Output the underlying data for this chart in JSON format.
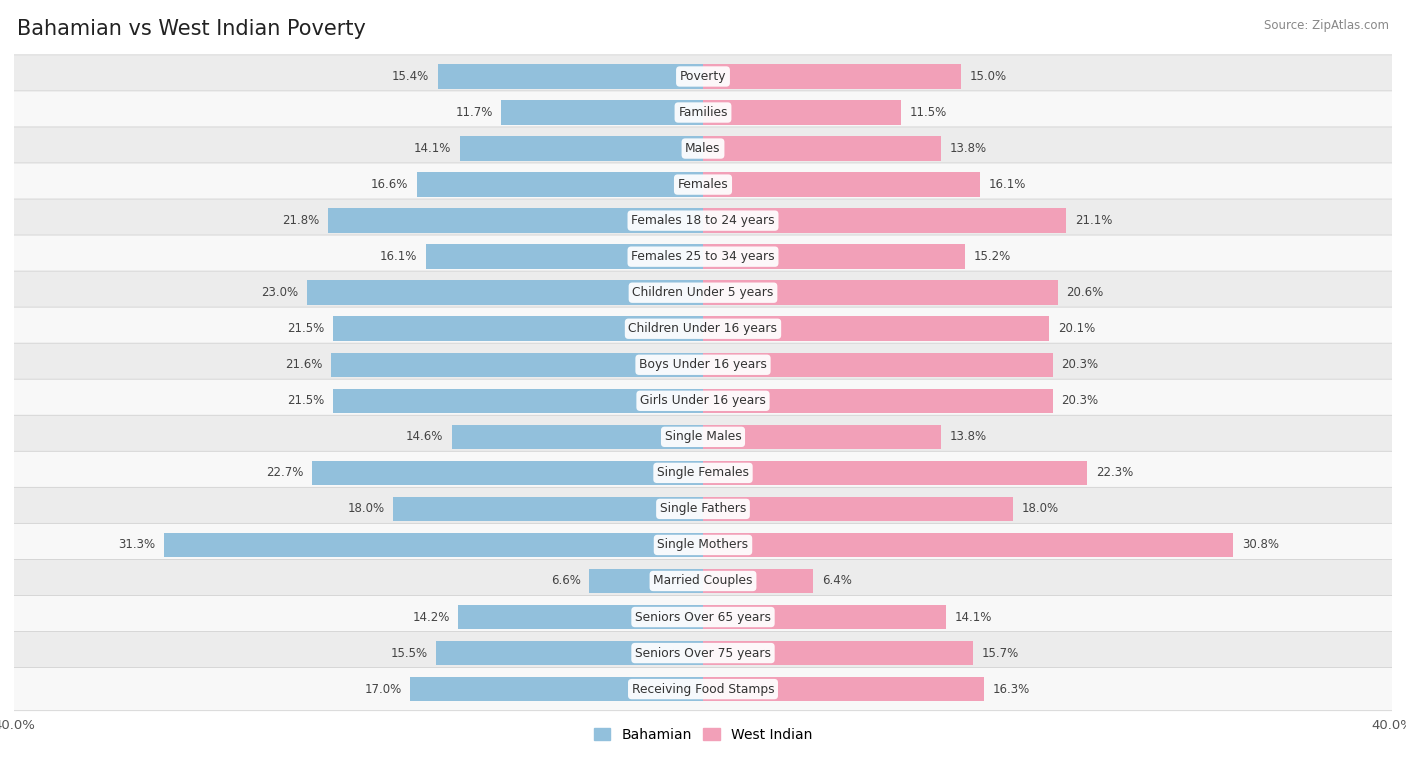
{
  "title": "Bahamian vs West Indian Poverty",
  "source": "Source: ZipAtlas.com",
  "categories": [
    "Poverty",
    "Families",
    "Males",
    "Females",
    "Females 18 to 24 years",
    "Females 25 to 34 years",
    "Children Under 5 years",
    "Children Under 16 years",
    "Boys Under 16 years",
    "Girls Under 16 years",
    "Single Males",
    "Single Females",
    "Single Fathers",
    "Single Mothers",
    "Married Couples",
    "Seniors Over 65 years",
    "Seniors Over 75 years",
    "Receiving Food Stamps"
  ],
  "bahamian": [
    15.4,
    11.7,
    14.1,
    16.6,
    21.8,
    16.1,
    23.0,
    21.5,
    21.6,
    21.5,
    14.6,
    22.7,
    18.0,
    31.3,
    6.6,
    14.2,
    15.5,
    17.0
  ],
  "west_indian": [
    15.0,
    11.5,
    13.8,
    16.1,
    21.1,
    15.2,
    20.6,
    20.1,
    20.3,
    20.3,
    13.8,
    22.3,
    18.0,
    30.8,
    6.4,
    14.1,
    15.7,
    16.3
  ],
  "blue_color": "#92C0DC",
  "pink_color": "#F2A0B8",
  "row_bg_even": "#ECECEC",
  "row_bg_odd": "#F8F8F8",
  "fig_bg": "#FFFFFF",
  "axis_max": 40.0,
  "bar_height": 0.68,
  "title_fontsize": 15,
  "cat_fontsize": 8.8,
  "value_fontsize": 8.5,
  "legend_fontsize": 10
}
